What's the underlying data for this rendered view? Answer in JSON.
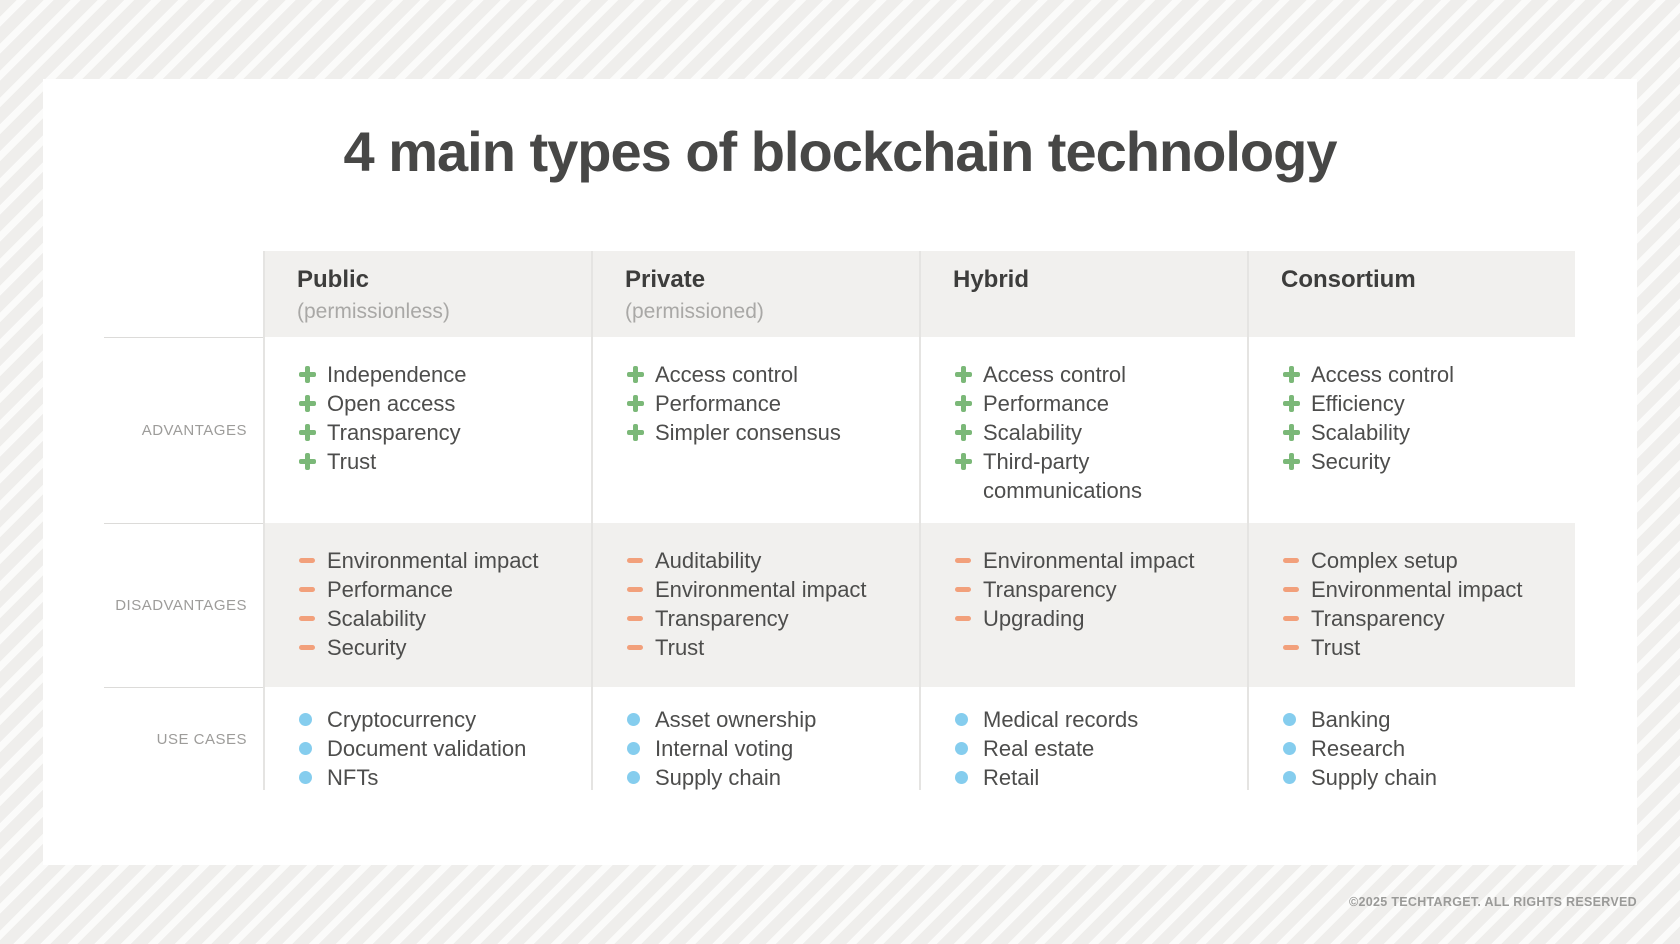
{
  "page": {
    "title": "4 main types of blockchain technology",
    "copyright": "©2025 TECHTARGET. ALL RIGHTS RESERVED"
  },
  "colors": {
    "advantage_green": "#7bb878",
    "disadvantage_orange": "#f2a07b",
    "usecase_blue": "#85cdee"
  },
  "table": {
    "row_labels": [
      {
        "label": "ADVANTAGES"
      },
      {
        "label": "DISADVANTAGES"
      },
      {
        "label": "USE CASES"
      }
    ],
    "columns": [
      {
        "name": "Public",
        "subtitle": "(permissionless)",
        "advantages": [
          "Independence",
          "Open access",
          "Transparency",
          "Trust"
        ],
        "disadvantages": [
          "Environmental impact",
          "Performance",
          "Scalability",
          "Security"
        ],
        "use_cases": [
          "Cryptocurrency",
          "Document validation",
          "NFTs"
        ]
      },
      {
        "name": "Private",
        "subtitle": "(permissioned)",
        "advantages": [
          "Access control",
          "Performance",
          "Simpler consensus"
        ],
        "disadvantages": [
          "Auditability",
          "Environmental impact",
          "Transparency",
          "Trust"
        ],
        "use_cases": [
          "Asset ownership",
          "Internal voting",
          "Supply chain"
        ]
      },
      {
        "name": "Hybrid",
        "subtitle": "",
        "advantages": [
          "Access control",
          "Performance",
          "Scalability",
          "Third-party communications"
        ],
        "disadvantages": [
          "Environmental impact",
          "Transparency",
          "Upgrading"
        ],
        "use_cases": [
          "Medical records",
          "Real estate",
          "Retail"
        ]
      },
      {
        "name": "Consortium",
        "subtitle": "",
        "advantages": [
          "Access control",
          "Efficiency",
          "Scalability",
          "Security"
        ],
        "disadvantages": [
          "Complex setup",
          "Environmental impact",
          "Transparency",
          "Trust"
        ],
        "use_cases": [
          "Banking",
          "Research",
          "Supply chain"
        ]
      }
    ]
  }
}
